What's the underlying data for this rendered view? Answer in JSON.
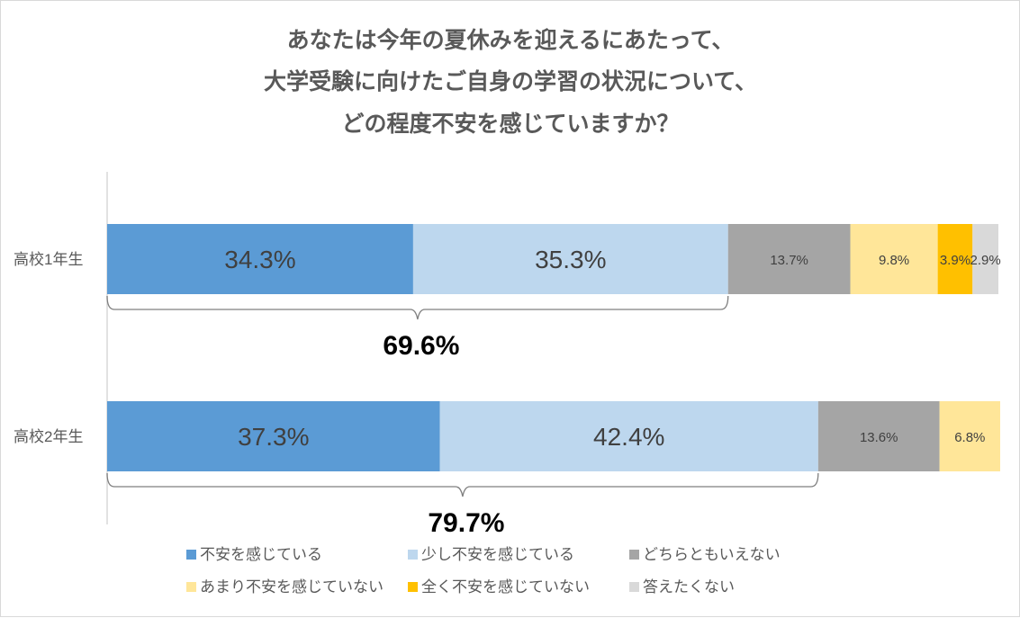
{
  "chart_data": {
    "type": "bar",
    "orientation": "horizontal",
    "stacked": true,
    "title_lines": [
      "あなたは今年の夏休みを迎えるにあたって、",
      "大学受験に向けたご自身の学習の状況について、",
      "どの程度不安を感じていますか？"
    ],
    "categories": [
      "高校1年生",
      "高校2年生"
    ],
    "series": [
      {
        "name": "不安を感じている",
        "color": "#5b9bd5",
        "values": [
          34.3,
          37.3
        ],
        "labels": [
          "34.3%",
          "37.3%"
        ]
      },
      {
        "name": "少し不安を感じている",
        "color": "#bdd7ee",
        "values": [
          35.3,
          42.4
        ],
        "labels": [
          "35.3%",
          "42.4%"
        ]
      },
      {
        "name": "どちらともいえない",
        "color": "#a5a5a5",
        "values": [
          13.7,
          13.6
        ],
        "labels": [
          "13.7%",
          "13.6%"
        ]
      },
      {
        "name": "あまり不安を感じていない",
        "color": "#ffe699",
        "values": [
          9.8,
          6.8
        ],
        "labels": [
          "9.8%",
          "6.8%"
        ]
      },
      {
        "name": "全く不安を感じていない",
        "color": "#ffc000",
        "values": [
          3.9,
          0
        ],
        "labels": [
          "3.9%",
          ""
        ]
      },
      {
        "name": "答えたくない",
        "color": "#d9d9d9",
        "values": [
          2.9,
          0
        ],
        "labels": [
          "2.9%",
          ""
        ]
      }
    ],
    "bracket_totals": [
      "69.6%",
      "79.7%"
    ],
    "xlim": [
      0,
      100
    ],
    "legend_position": "bottom",
    "grid": false
  }
}
